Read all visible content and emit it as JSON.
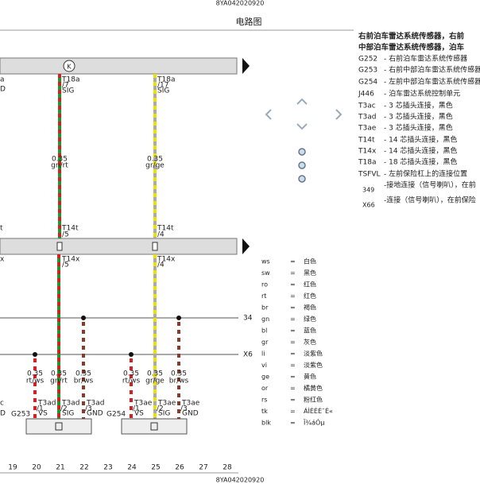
{
  "header": {
    "doc_id": "8YA042020920",
    "title": "电路图"
  },
  "diagram": {
    "bar_symbol": "K",
    "cut_labels": [
      "a",
      "D",
      "t",
      "x",
      "c",
      "D"
    ],
    "upper_wires": [
      {
        "top": [
          "T18a",
          "/7",
          "SIG"
        ],
        "gauge": "0.35",
        "color": "gn/rt",
        "t14t": [
          "T14t",
          "/5"
        ],
        "t14x": [
          "T14x",
          "/5"
        ]
      },
      {
        "top": [
          "T18a",
          "/17",
          "SIG"
        ],
        "gauge": "0.35",
        "color": "gr/ge",
        "t14t": [
          "T14t",
          "/4"
        ],
        "t14x": [
          "T14x",
          "/4"
        ]
      }
    ],
    "bus_labels": [
      "34",
      "X6"
    ],
    "lower_wires": [
      {
        "gauge": "0.35",
        "color": "rt/ws",
        "pin": [
          "T3ad",
          "/1",
          "VS"
        ]
      },
      {
        "gauge": "0.35",
        "color": "gn/rt",
        "pin": [
          "T3ad",
          "/2",
          "SIG"
        ]
      },
      {
        "gauge": "0.35",
        "color": "br/ws",
        "pin": [
          "T3ad",
          "/3",
          "GND"
        ]
      },
      {
        "gauge": "0.35",
        "color": "rt/ws",
        "pin": [
          "T3ae",
          "/1",
          "VS"
        ]
      },
      {
        "gauge": "0.35",
        "color": "gr/ge",
        "pin": [
          "T3ae",
          "/2",
          "SIG"
        ]
      },
      {
        "gauge": "0.35",
        "color": "br/ws",
        "pin": [
          "T3ae",
          "/3",
          "GND"
        ]
      }
    ],
    "components": [
      "G253",
      "G254"
    ],
    "columns": [
      "19",
      "20",
      "21",
      "22",
      "23",
      "24",
      "25",
      "26",
      "27",
      "28"
    ],
    "footer_id": "8YA042020920"
  },
  "legend": {
    "heading": [
      "右前泊车雷达系统传感器，右前",
      "中部泊车雷达系统传感器，泊车"
    ],
    "items": [
      {
        "code": "G252",
        "desc": "- 右前泊车雷达系统传感器"
      },
      {
        "code": "G253",
        "desc": "- 右前中部泊车雷达系统传感器"
      },
      {
        "code": "G254",
        "desc": "- 左前中部泊车雷达系统传感器"
      },
      {
        "code": "J446",
        "desc": "- 泊车雷达系统控制单元"
      },
      {
        "code": "T3ac",
        "desc": "- 3 芯插头连接，黑色"
      },
      {
        "code": "T3ad",
        "desc": "- 3 芯插头连接，黑色"
      },
      {
        "code": "T3ae",
        "desc": "- 3 芯插头连接，黑色"
      },
      {
        "code": "T14t",
        "desc": "- 14 芯插头连接，黑色"
      },
      {
        "code": "T14x",
        "desc": "- 14 芯插头连接，黑色"
      },
      {
        "code": "T18a",
        "desc": "- 18 芯插头连接，黑色"
      },
      {
        "code": "TSFVL",
        "desc": "- 左前保险杠上的连接位置"
      },
      {
        "code": "349",
        "desc": "-接地连接（信号喇叭），在前"
      },
      {
        "code": "X66",
        "desc": "-连接（信号喇叭），在前保险"
      }
    ],
    "colors": [
      {
        "code": "ws",
        "name": "白色"
      },
      {
        "code": "sw",
        "name": "黑色"
      },
      {
        "code": "ro",
        "name": "红色"
      },
      {
        "code": "rt",
        "name": "红色"
      },
      {
        "code": "br",
        "name": "褐色"
      },
      {
        "code": "gn",
        "name": "绿色"
      },
      {
        "code": "bl",
        "name": "蓝色"
      },
      {
        "code": "gr",
        "name": "灰色"
      },
      {
        "code": "li",
        "name": "淡紫色"
      },
      {
        "code": "vi",
        "name": "淡紫色"
      },
      {
        "code": "ge",
        "name": "黄色"
      },
      {
        "code": "or",
        "name": "橘黄色"
      },
      {
        "code": "rs",
        "name": "粉红色"
      },
      {
        "code": "tk",
        "name": "ÁÌÉÉÉ¯É«"
      },
      {
        "code": "blk",
        "name": "Ï¾áÓµ"
      }
    ],
    "eq": "="
  }
}
